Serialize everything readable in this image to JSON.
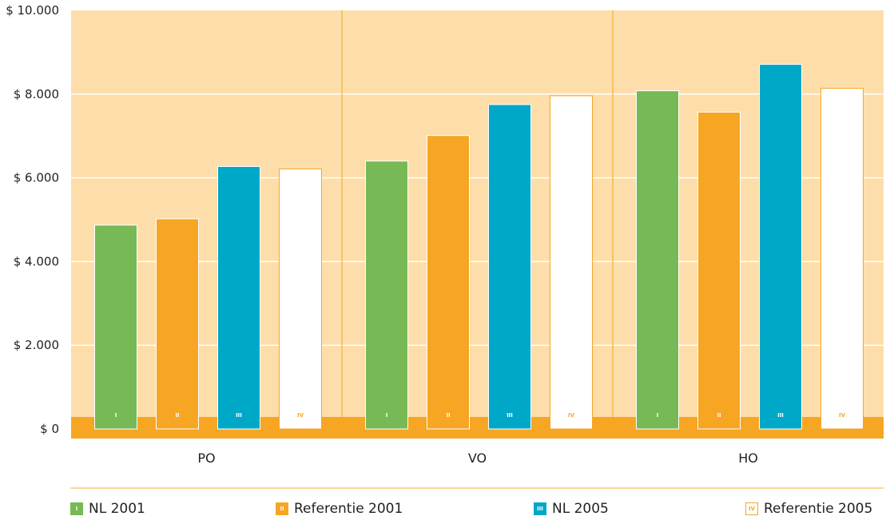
{
  "colors": {
    "plot_bg": "#fddeaa",
    "baseline_band": "#f6a623",
    "divider": "#f6b94b",
    "gridline": "#ffffff"
  },
  "chart_data": {
    "type": "bar",
    "categories": [
      "PO",
      "VO",
      "HO"
    ],
    "ylim": [
      0,
      10000
    ],
    "yticks": [
      {
        "value": 0,
        "label": "$ 0"
      },
      {
        "value": 2000,
        "label": "$ 2.000"
      },
      {
        "value": 4000,
        "label": "$ 4.000"
      },
      {
        "value": 6000,
        "label": "$ 6.000"
      },
      {
        "value": 8000,
        "label": "$ 8.000"
      },
      {
        "value": 10000,
        "label": "$ 10.000"
      }
    ],
    "grid": true,
    "legend_position": "bottom",
    "series": [
      {
        "name": "NL 2001",
        "marker": "I",
        "color": "#77b955",
        "marker_color": "#ffffff",
        "border": "#77b955",
        "values": [
          4870,
          6400,
          8080
        ]
      },
      {
        "name": "Referentie 2001",
        "marker": "II",
        "color": "#f6a623",
        "marker_color": "#ffffff",
        "border": "#f6a623",
        "values": [
          5020,
          7010,
          7570
        ]
      },
      {
        "name": "NL 2005",
        "marker": "III",
        "color": "#00a8c8",
        "marker_color": "#ffffff",
        "border": "#00a8c8",
        "values": [
          6270,
          7750,
          8710
        ]
      },
      {
        "name": "Referentie 2005",
        "marker": "IV",
        "color": "#ffffff",
        "marker_color": "#f6a623",
        "border": "#f6a623",
        "values": [
          6210,
          7960,
          8140
        ]
      }
    ]
  }
}
